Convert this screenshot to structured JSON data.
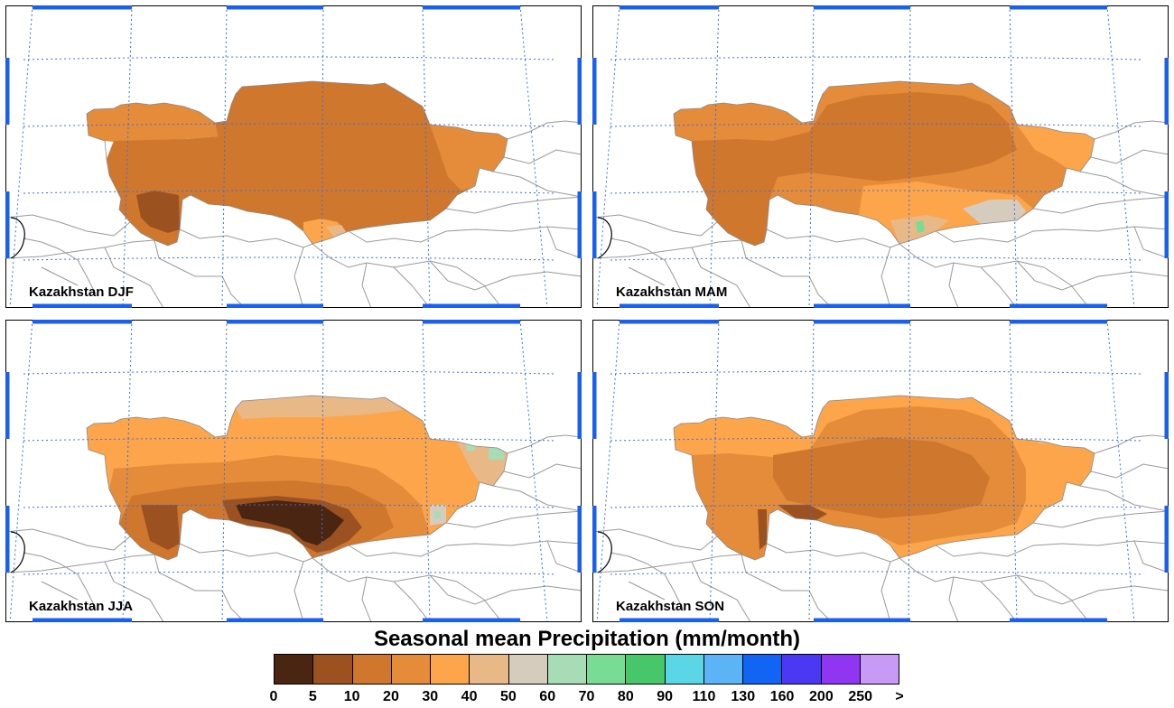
{
  "panels": [
    {
      "label": "Kazakhstan DJF",
      "season": "DJF"
    },
    {
      "label": "Kazakhstan MAM",
      "season": "MAM"
    },
    {
      "label": "Kazakhstan JJA",
      "season": "JJA"
    },
    {
      "label": "Kazakhstan SON",
      "season": "SON"
    }
  ],
  "legend": {
    "title": "Seasonal mean Precipitation (mm/month)",
    "ticks": [
      "0",
      "5",
      "10",
      "20",
      "30",
      "40",
      "50",
      "60",
      "70",
      "80",
      "90",
      "110",
      "130",
      "160",
      "200",
      "250",
      ">"
    ],
    "colors": [
      "#4a2511",
      "#9c5220",
      "#d0772e",
      "#e48c3a",
      "#fca54b",
      "#e9b887",
      "#d6ccbe",
      "#a8dcb6",
      "#79dc94",
      "#47c76a",
      "#5bd6e6",
      "#5cb4f6",
      "#1264f5",
      "#4b38f2",
      "#9036f2",
      "#c79af6"
    ]
  },
  "map_colors": {
    "c5": "#9c5220",
    "c10": "#d0772e",
    "c20": "#e48c3a",
    "c30": "#fca54b",
    "c40": "#e9b887",
    "c50": "#d6ccbe",
    "c60": "#a8dcb6",
    "c70": "#79dc94",
    "c0": "#4a2511",
    "frame_blue": "#1a5ff0",
    "grid_blue": "#3a6fe0",
    "border_grey": "#999999"
  }
}
